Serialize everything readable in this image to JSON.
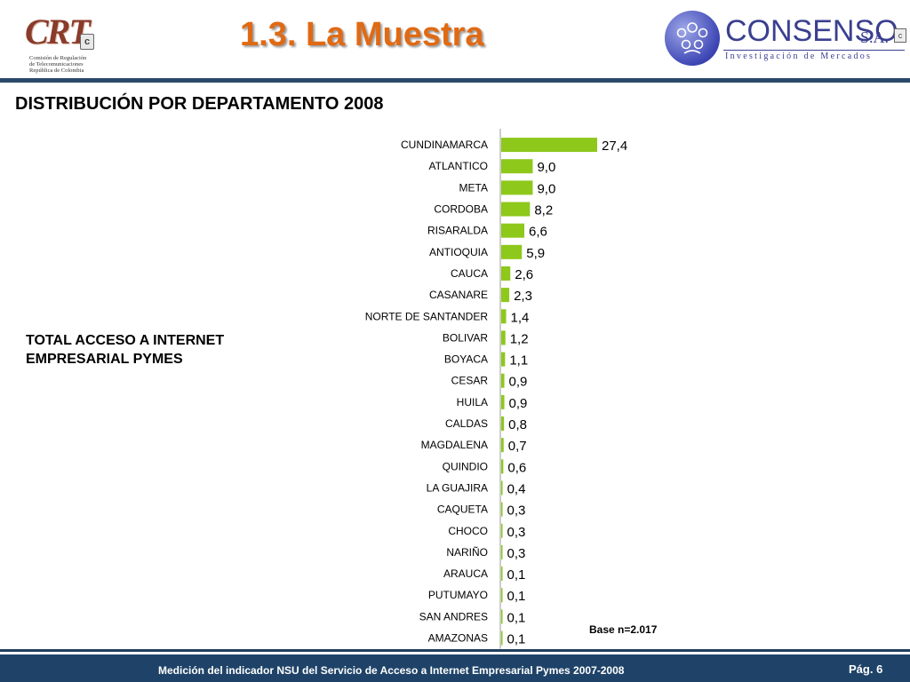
{
  "header": {
    "page_title": "1.3. La Muestra",
    "crt_logo": {
      "letters": "CRT",
      "badge": "c",
      "lines": [
        "Comisión de Regulación",
        "de Telecomunicaciones",
        "República de Colombia"
      ]
    },
    "consenso_logo": {
      "brand": "CONSENSO",
      "suffix": "S.A.",
      "badge": "c",
      "tagline": "Investigación de Mercados"
    }
  },
  "subtitle": "DISTRIBUCIÓN POR DEPARTAMENTO 2008",
  "side_note": [
    "TOTAL ACCESO A  INTERNET",
    "EMPRESARIAL PYMES"
  ],
  "base_label": "Base n=2.017",
  "colors": {
    "bar": "#8ec81b",
    "title": "#e06a14",
    "footer": "#1f4368",
    "brand": "#3a3f8f"
  },
  "chart_data": {
    "type": "bar",
    "orientation": "horizontal",
    "categories": [
      "CUNDINAMARCA",
      "ATLANTICO",
      "META",
      "CORDOBA",
      "RISARALDA",
      "ANTIOQUIA",
      "CAUCA",
      "CASANARE",
      "NORTE DE SANTANDER",
      "BOLIVAR",
      "BOYACA",
      "CESAR",
      "HUILA",
      "CALDAS",
      "MAGDALENA",
      "QUINDIO",
      "LA GUAJIRA",
      "CAQUETA",
      "CHOCO",
      "NARIÑO",
      "ARAUCA",
      "PUTUMAYO",
      "SAN ANDRES",
      "AMAZONAS"
    ],
    "values": [
      27.4,
      9.0,
      9.0,
      8.2,
      6.6,
      5.9,
      2.6,
      2.3,
      1.4,
      1.2,
      1.1,
      0.9,
      0.9,
      0.8,
      0.7,
      0.6,
      0.4,
      0.3,
      0.3,
      0.3,
      0.1,
      0.1,
      0.1,
      0.1
    ],
    "value_labels": [
      "27,4",
      "9,0",
      "9,0",
      "8,2",
      "6,6",
      "5,9",
      "2,6",
      "2,3",
      "1,4",
      "1,2",
      "1,1",
      "0,9",
      "0,9",
      "0,8",
      "0,7",
      "0,6",
      "0,4",
      "0,3",
      "0,3",
      "0,3",
      "0,1",
      "0,1",
      "0,1",
      "0,1"
    ],
    "title": "",
    "xlabel": "",
    "ylabel": "",
    "xlim": [
      0,
      30
    ],
    "grid": false,
    "legend": "none"
  },
  "footer": {
    "text": "Medición del  indicador NSU del Servicio de Acceso a Internet Empresarial Pymes 2007-2008",
    "page": "Pág. 6"
  }
}
